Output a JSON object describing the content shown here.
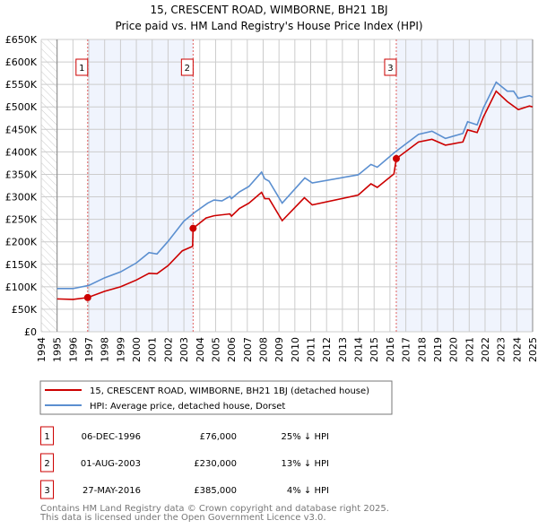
{
  "chart_data": {
    "type": "line",
    "title": "15, CRESCENT ROAD, WIMBORNE, BH21 1BJ",
    "subtitle": "Price paid vs. HM Land Registry's House Price Index (HPI)",
    "xlim": [
      1994,
      2025
    ],
    "ylim": [
      0,
      650000
    ],
    "x_ticks": [
      "1994",
      "1995",
      "1996",
      "1997",
      "1998",
      "1999",
      "2000",
      "2001",
      "2002",
      "2003",
      "2004",
      "2005",
      "2006",
      "2007",
      "2008",
      "2009",
      "2010",
      "2011",
      "2012",
      "2013",
      "2014",
      "2015",
      "2016",
      "2017",
      "2018",
      "2019",
      "2020",
      "2021",
      "2022",
      "2023",
      "2024",
      "2025"
    ],
    "y_ticks": [
      {
        "v": 0,
        "label": "£0"
      },
      {
        "v": 50000,
        "label": "£50K"
      },
      {
        "v": 100000,
        "label": "£100K"
      },
      {
        "v": 150000,
        "label": "£150K"
      },
      {
        "v": 200000,
        "label": "£200K"
      },
      {
        "v": 250000,
        "label": "£250K"
      },
      {
        "v": 300000,
        "label": "£300K"
      },
      {
        "v": 350000,
        "label": "£350K"
      },
      {
        "v": 400000,
        "label": "£400K"
      },
      {
        "v": 450000,
        "label": "£450K"
      },
      {
        "v": 500000,
        "label": "£500K"
      },
      {
        "v": 550000,
        "label": "£550K"
      },
      {
        "v": 600000,
        "label": "£600K"
      },
      {
        "v": 650000,
        "label": "£650K"
      }
    ],
    "grid": true,
    "legend_placement": "below",
    "series": [
      {
        "name": "15, CRESCENT ROAD, WIMBORNE, BH21 1BJ (detached house)",
        "color": "#cc0000",
        "points": [
          [
            1995,
            73000
          ],
          [
            1996,
            72000
          ],
          [
            1996.93,
            76000
          ],
          [
            1998,
            90000
          ],
          [
            1999,
            100000
          ],
          [
            2000,
            115000
          ],
          [
            2000.8,
            130000
          ],
          [
            2001.3,
            129000
          ],
          [
            2002,
            147000
          ],
          [
            2002.9,
            180000
          ],
          [
            2003.55,
            190000
          ],
          [
            2003.58,
            230000
          ],
          [
            2004.4,
            253000
          ],
          [
            2004.9,
            258000
          ],
          [
            2005.9,
            262000
          ],
          [
            2006,
            257000
          ],
          [
            2006.5,
            274000
          ],
          [
            2007.1,
            286000
          ],
          [
            2007.9,
            310000
          ],
          [
            2008.1,
            296000
          ],
          [
            2008.37,
            296000
          ],
          [
            2009.2,
            247000
          ],
          [
            2010.6,
            298000
          ],
          [
            2011.1,
            282000
          ],
          [
            2014.0,
            304000
          ],
          [
            2014.8,
            329000
          ],
          [
            2015.2,
            321000
          ],
          [
            2016.25,
            351000
          ],
          [
            2016.4,
            385000
          ],
          [
            2017.8,
            422000
          ],
          [
            2018.65,
            428000
          ],
          [
            2019.5,
            415000
          ],
          [
            2020.6,
            422000
          ],
          [
            2020.9,
            449000
          ],
          [
            2021.5,
            443000
          ],
          [
            2021.9,
            478000
          ],
          [
            2022.7,
            535000
          ],
          [
            2023.4,
            512000
          ],
          [
            2024.1,
            494000
          ],
          [
            2024.8,
            502000
          ],
          [
            2025,
            500000
          ]
        ]
      },
      {
        "name": "HPI: Average price, detached house, Dorset",
        "color": "#5b8fd0",
        "points": [
          [
            1995,
            96000
          ],
          [
            1996,
            96000
          ],
          [
            1997,
            103000
          ],
          [
            1998,
            120000
          ],
          [
            1999,
            133000
          ],
          [
            2000,
            153000
          ],
          [
            2000.8,
            176000
          ],
          [
            2001.3,
            173000
          ],
          [
            2002,
            201000
          ],
          [
            2003,
            246000
          ],
          [
            2003.7,
            266000
          ],
          [
            2004.5,
            286000
          ],
          [
            2004.9,
            293000
          ],
          [
            2005.4,
            291000
          ],
          [
            2005.9,
            301000
          ],
          [
            2006,
            296000
          ],
          [
            2006.5,
            311000
          ],
          [
            2007.1,
            323000
          ],
          [
            2007.9,
            355000
          ],
          [
            2008.1,
            340000
          ],
          [
            2008.37,
            335000
          ],
          [
            2009.2,
            286000
          ],
          [
            2010.63,
            342000
          ],
          [
            2011.1,
            331000
          ],
          [
            2014.0,
            349000
          ],
          [
            2014.8,
            372000
          ],
          [
            2015.2,
            366000
          ],
          [
            2016.3,
            399000
          ],
          [
            2017.8,
            439000
          ],
          [
            2018.65,
            446000
          ],
          [
            2019.5,
            430000
          ],
          [
            2020.6,
            441000
          ],
          [
            2020.9,
            467000
          ],
          [
            2021.5,
            460000
          ],
          [
            2021.9,
            498000
          ],
          [
            2022.7,
            555000
          ],
          [
            2023.4,
            535000
          ],
          [
            2023.8,
            535000
          ],
          [
            2024.1,
            519000
          ],
          [
            2024.8,
            525000
          ],
          [
            2025,
            522000
          ]
        ]
      }
    ],
    "sales": [
      {
        "id": "1",
        "x": 1996.93,
        "price": 76000,
        "date": "06-DEC-1996",
        "price_label": "£76,000",
        "hpi": "25% ↓ HPI"
      },
      {
        "id": "2",
        "x": 2003.58,
        "price": 230000,
        "date": "01-AUG-2003",
        "price_label": "£230,000",
        "hpi": "13% ↓ HPI"
      },
      {
        "id": "3",
        "x": 2016.4,
        "price": 385000,
        "date": "27-MAY-2016",
        "price_label": "£385,000",
        "hpi": "4% ↓ HPI"
      }
    ],
    "shaded_ranges": [
      [
        1996.93,
        2003.58
      ],
      [
        2016.4,
        2025
      ]
    ]
  },
  "footer": [
    "Contains HM Land Registry data © Crown copyright and database right 2025.",
    "This data is licensed under the Open Government Licence v3.0."
  ]
}
